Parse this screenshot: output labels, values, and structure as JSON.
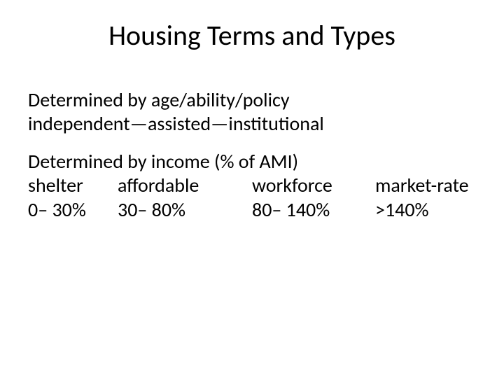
{
  "title": "Housing Terms and Types",
  "section1": {
    "line1": "Determined by age/ability/policy",
    "line2": "independent—assisted—institutional"
  },
  "section2": {
    "heading": "Determined by income (% of AMI)",
    "columns": [
      {
        "label": "shelter",
        "range": "0– 30%"
      },
      {
        "label": "affordable",
        "range": "30– 80%"
      },
      {
        "label": "workforce",
        "range": "80– 140%"
      },
      {
        "label": "market-rate",
        "range": ">140%"
      }
    ]
  },
  "colors": {
    "background": "#ffffff",
    "text": "#000000"
  },
  "fonts": {
    "title_size_pt": 40,
    "body_size_pt": 28,
    "family": "Calibri"
  }
}
